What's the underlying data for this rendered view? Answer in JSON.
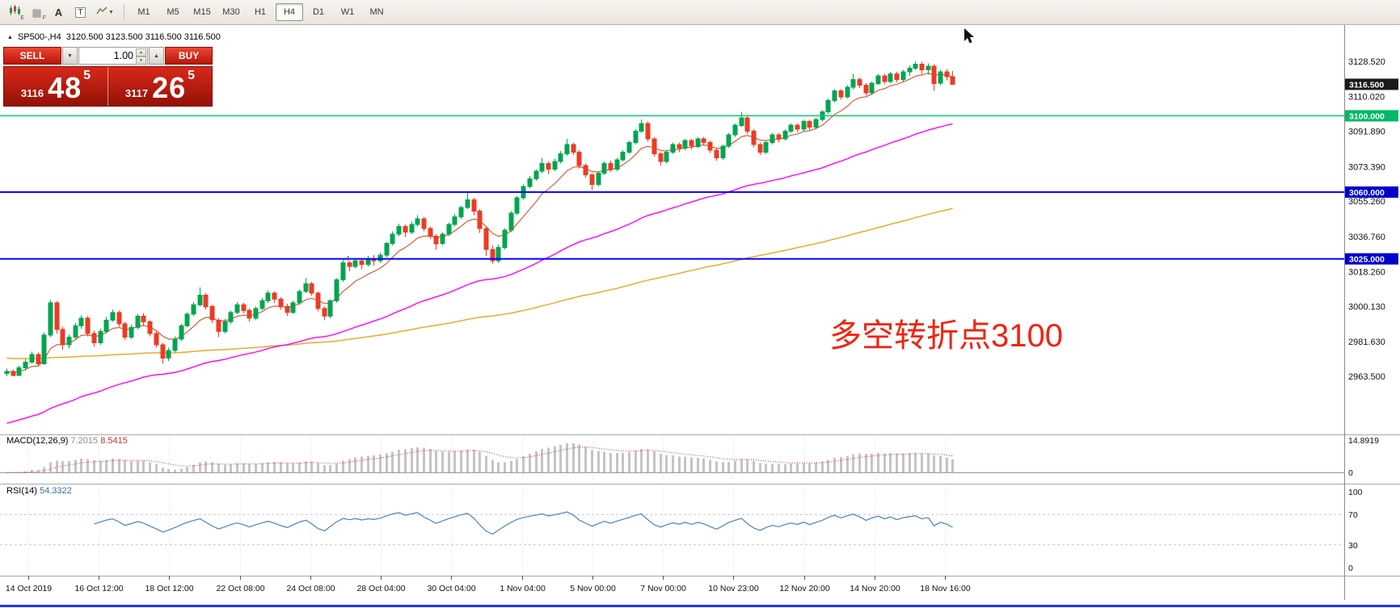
{
  "toolbar": {
    "tools": [
      {
        "name": "chart-expert-icon",
        "label": "E"
      },
      {
        "name": "grid-data-icon",
        "label": "F"
      },
      {
        "name": "font-tool",
        "label": "A"
      },
      {
        "name": "text-tool",
        "label": "T"
      },
      {
        "name": "zigzag-tool",
        "label": ""
      }
    ],
    "timeframes": [
      {
        "label": "M1",
        "active": false
      },
      {
        "label": "M5",
        "active": false
      },
      {
        "label": "M15",
        "active": false
      },
      {
        "label": "M30",
        "active": false
      },
      {
        "label": "H1",
        "active": false
      },
      {
        "label": "H4",
        "active": true
      },
      {
        "label": "D1",
        "active": false
      },
      {
        "label": "W1",
        "active": false
      },
      {
        "label": "MN",
        "active": false
      }
    ]
  },
  "symbol_header": {
    "symbol": "SP500-,H4",
    "ohlc": "3120.500 3123.500 3116.500 3116.500"
  },
  "trade_panel": {
    "sell_label": "SELL",
    "buy_label": "BUY",
    "volume": "1.00",
    "sell_price_prefix": "3116",
    "sell_price_main": "48",
    "sell_price_sup": "5",
    "buy_price_prefix": "3117",
    "buy_price_main": "26",
    "buy_price_sup": "5"
  },
  "annotation": {
    "text": "多空转折点3100",
    "color": "#f2230d"
  },
  "chart_data": {
    "type": "candlestick",
    "symbol": "SP500-",
    "timeframe": "H4",
    "title": "SP500-,H4",
    "ohlc_display": "3120.500 3123.500 3116.500 3116.500",
    "price_axis": [
      {
        "label": "3128.520",
        "price": 3128.52
      },
      {
        "label": "3110.020",
        "price": 3110.02
      },
      {
        "label": "3091.890",
        "price": 3091.89
      },
      {
        "label": "3073.390",
        "price": 3073.39
      },
      {
        "label": "3055.260",
        "price": 3055.26
      },
      {
        "label": "3036.760",
        "price": 3036.76
      },
      {
        "label": "3018.260",
        "price": 3018.26
      },
      {
        "label": "3000.130",
        "price": 3000.13
      },
      {
        "label": "2981.630",
        "price": 2981.63
      },
      {
        "label": "2963.500",
        "price": 2963.5
      }
    ],
    "price_tags": [
      {
        "label": "3116.500",
        "price": 3116.5,
        "bg": "#1a1a1a"
      },
      {
        "label": "3100.000",
        "price": 3100.0,
        "bg": "#00b865"
      },
      {
        "label": "3060.000",
        "price": 3060.0,
        "bg": "#0000cc"
      },
      {
        "label": "3025.000",
        "price": 3025.0,
        "bg": "#0000cc"
      }
    ],
    "hlines": [
      {
        "price": 3100.0,
        "color": "#00cf70",
        "width": 1.5
      },
      {
        "price": 3060.0,
        "color": "#0000ff",
        "width": 2
      },
      {
        "price": 3025.0,
        "color": "#0000ff",
        "width": 2
      }
    ],
    "time_labels": [
      "14 Oct 2019",
      "16 Oct 12:00",
      "18 Oct 12:00",
      "22 Oct 08:00",
      "24 Oct 08:00",
      "28 Oct 04:00",
      "30 Oct 04:00",
      "1 Nov 04:00",
      "5 Nov 00:00",
      "7 Nov 00:00",
      "10 Nov 23:00",
      "12 Nov 20:00",
      "14 Nov 20:00",
      "18 Nov 16:00"
    ],
    "ma": {
      "fast": {
        "color": "#d9512a"
      },
      "medium": {
        "color": "#ff00ff"
      },
      "slow": {
        "color": "#eea41e"
      }
    },
    "macd": {
      "label": "MACD(12,26,9)",
      "value_main": "7.2015",
      "value_signal": "8.5415",
      "fast": 12,
      "slow": 26,
      "signal": 9,
      "axis_top": "14.8919",
      "axis_zero": "0"
    },
    "rsi": {
      "label": "RSI(14)",
      "value": "54.3322",
      "period": 14,
      "levels": [
        70,
        30
      ],
      "axis": [
        "100",
        "70",
        "30",
        "0"
      ]
    },
    "candles": [
      [
        2965,
        2967.5,
        2963.5,
        2966
      ],
      [
        2966,
        2967,
        2963.5,
        2964
      ],
      [
        2964,
        2969,
        2963.8,
        2968
      ],
      [
        2968,
        2972.5,
        2966.5,
        2971
      ],
      [
        2971,
        2976.5,
        2970,
        2975
      ],
      [
        2975,
        2976,
        2968.5,
        2970
      ],
      [
        2970,
        2986.5,
        2969.5,
        2985
      ],
      [
        2985,
        3003.5,
        2984,
        3002
      ],
      [
        3002,
        3003,
        2986,
        2988
      ],
      [
        2988,
        2989.5,
        2977.5,
        2980
      ],
      [
        2980,
        2985.5,
        2978,
        2984
      ],
      [
        2984,
        2991.5,
        2983,
        2990
      ],
      [
        2990,
        2995.5,
        2988.5,
        2994
      ],
      [
        2994,
        2995,
        2984.5,
        2986
      ],
      [
        2986,
        2987.5,
        2979,
        2981
      ],
      [
        2981,
        2988.5,
        2980,
        2987
      ],
      [
        2987,
        2994.5,
        2986,
        2993
      ],
      [
        2993,
        2998.5,
        2992,
        2997
      ],
      [
        2997,
        2998,
        2989.5,
        2991
      ],
      [
        2991,
        2992,
        2982.5,
        2984
      ],
      [
        2984,
        2990.5,
        2983,
        2989
      ],
      [
        2989,
        2996,
        2988,
        2995
      ],
      [
        2995,
        2996.5,
        2990,
        2992
      ],
      [
        2992,
        2993,
        2984.5,
        2986
      ],
      [
        2986,
        2987,
        2978.5,
        2980
      ],
      [
        2980,
        2981,
        2970,
        2973
      ],
      [
        2973,
        2978.5,
        2971.5,
        2977
      ],
      [
        2977,
        2984.5,
        2976,
        2983
      ],
      [
        2983,
        2991,
        2982,
        2990
      ],
      [
        2990,
        2997,
        2989,
        2996
      ],
      [
        2996,
        3002.5,
        2995,
        3001
      ],
      [
        3001,
        3010,
        3000,
        3006
      ],
      [
        3006,
        3007,
        2998.5,
        3000
      ],
      [
        3000,
        3001,
        2991.5,
        2993
      ],
      [
        2993,
        2994,
        2984,
        2987
      ],
      [
        2987,
        2993.5,
        2986,
        2992
      ],
      [
        2992,
        2998,
        2991,
        2997
      ],
      [
        2997,
        3002.5,
        2996,
        3001
      ],
      [
        3001,
        3002,
        2996.5,
        2998
      ],
      [
        2998,
        2999,
        2992,
        2994
      ],
      [
        2994,
        3000,
        2993,
        2999
      ],
      [
        2999,
        3004.5,
        2998,
        3003
      ],
      [
        3003,
        3008.5,
        3002,
        3007
      ],
      [
        3007,
        3008,
        3002,
        3004
      ],
      [
        3004,
        3005,
        2998.5,
        3000
      ],
      [
        3000,
        3001.5,
        2995,
        2997
      ],
      [
        2997,
        3003,
        2996,
        3002
      ],
      [
        3002,
        3009,
        3001,
        3008
      ],
      [
        3008,
        3015,
        3007,
        3012
      ],
      [
        3012,
        3013,
        3005.5,
        3007
      ],
      [
        3007,
        3008,
        2997.5,
        2999
      ],
      [
        2999,
        3000,
        2993,
        2995
      ],
      [
        2995,
        3004,
        2994,
        3003
      ],
      [
        3003,
        3015,
        3002,
        3014
      ],
      [
        3014,
        3024.5,
        3013,
        3023
      ],
      [
        3023,
        3024,
        3018.5,
        3021
      ],
      [
        3021,
        3025.5,
        3020,
        3024
      ],
      [
        3024,
        3025,
        3019.5,
        3022
      ],
      [
        3022,
        3026.5,
        3021,
        3025
      ],
      [
        3025,
        3027,
        3021.5,
        3024
      ],
      [
        3024,
        3028.5,
        3023,
        3027
      ],
      [
        3027,
        3034,
        3026,
        3033
      ],
      [
        3033,
        3039.5,
        3032,
        3038
      ],
      [
        3038,
        3043.5,
        3037,
        3042
      ],
      [
        3042,
        3043,
        3036.5,
        3039
      ],
      [
        3039,
        3044.5,
        3038,
        3043
      ],
      [
        3043,
        3048,
        3042,
        3046
      ],
      [
        3046,
        3047,
        3039.5,
        3041
      ],
      [
        3041,
        3042,
        3035.5,
        3037
      ],
      [
        3037,
        3038,
        3030,
        3033
      ],
      [
        3033,
        3039,
        3032,
        3038
      ],
      [
        3038,
        3044,
        3037,
        3043
      ],
      [
        3043,
        3048.5,
        3042,
        3047
      ],
      [
        3047,
        3053,
        3046,
        3052
      ],
      [
        3052,
        3060,
        3051,
        3056
      ],
      [
        3056,
        3057,
        3048,
        3050
      ],
      [
        3050,
        3051,
        3038.5,
        3041
      ],
      [
        3041,
        3042,
        3026.5,
        3030
      ],
      [
        3030,
        3032,
        3022.5,
        3024
      ],
      [
        3024,
        3032.5,
        3023,
        3031
      ],
      [
        3031,
        3041,
        3030,
        3040
      ],
      [
        3040,
        3050,
        3039,
        3049
      ],
      [
        3049,
        3058,
        3048,
        3057
      ],
      [
        3057,
        3064,
        3056,
        3063
      ],
      [
        3063,
        3068.5,
        3062,
        3067
      ],
      [
        3067,
        3072,
        3066,
        3071
      ],
      [
        3071,
        3078,
        3070,
        3075
      ],
      [
        3075,
        3076,
        3069.5,
        3072
      ],
      [
        3072,
        3077.5,
        3071,
        3076
      ],
      [
        3076,
        3081.5,
        3075,
        3080
      ],
      [
        3080,
        3088,
        3079,
        3085
      ],
      [
        3085,
        3086,
        3079.5,
        3081
      ],
      [
        3081,
        3082,
        3072.5,
        3074
      ],
      [
        3074,
        3075,
        3067.5,
        3069
      ],
      [
        3069,
        3070,
        3061,
        3064
      ],
      [
        3064,
        3071,
        3063,
        3070
      ],
      [
        3070,
        3076,
        3069,
        3075
      ],
      [
        3075,
        3076.5,
        3070.5,
        3072
      ],
      [
        3072,
        3078,
        3071,
        3077
      ],
      [
        3077,
        3082,
        3076,
        3081
      ],
      [
        3081,
        3087,
        3080,
        3086
      ],
      [
        3086,
        3093,
        3085,
        3092
      ],
      [
        3092,
        3098,
        3091,
        3096
      ],
      [
        3096,
        3097,
        3086.5,
        3088
      ],
      [
        3088,
        3089,
        3078.5,
        3080
      ],
      [
        3080,
        3081,
        3074,
        3076
      ],
      [
        3076,
        3082,
        3075,
        3081
      ],
      [
        3081,
        3086,
        3080,
        3085
      ],
      [
        3085,
        3086,
        3081,
        3083
      ],
      [
        3083,
        3088,
        3082,
        3087
      ],
      [
        3087,
        3088,
        3082.5,
        3084
      ],
      [
        3084,
        3089,
        3083,
        3088
      ],
      [
        3088,
        3089,
        3084.5,
        3086
      ],
      [
        3086,
        3087,
        3080.5,
        3082
      ],
      [
        3082,
        3083,
        3076.5,
        3078
      ],
      [
        3078,
        3085,
        3077,
        3084
      ],
      [
        3084,
        3091,
        3083,
        3090
      ],
      [
        3090,
        3096,
        3089,
        3095
      ],
      [
        3095,
        3102,
        3094,
        3099
      ],
      [
        3099,
        3100,
        3090.5,
        3092
      ],
      [
        3092,
        3093,
        3083.5,
        3085
      ],
      [
        3085,
        3086,
        3079.5,
        3081
      ],
      [
        3081,
        3087,
        3080,
        3086
      ],
      [
        3086,
        3091,
        3085,
        3090
      ],
      [
        3090,
        3091,
        3086,
        3088
      ],
      [
        3088,
        3093,
        3087,
        3092
      ],
      [
        3092,
        3096,
        3091,
        3095
      ],
      [
        3095,
        3096,
        3091.5,
        3093
      ],
      [
        3093,
        3098,
        3092,
        3097
      ],
      [
        3097,
        3098,
        3092.5,
        3094
      ],
      [
        3094,
        3099,
        3093,
        3098
      ],
      [
        3098,
        3103,
        3097,
        3102
      ],
      [
        3102,
        3109,
        3101,
        3108
      ],
      [
        3108,
        3114,
        3107,
        3113
      ],
      [
        3113,
        3114,
        3108.5,
        3110
      ],
      [
        3110,
        3116,
        3109,
        3115
      ],
      [
        3115,
        3122,
        3114,
        3119
      ],
      [
        3119,
        3120,
        3114.5,
        3116
      ],
      [
        3116,
        3117,
        3110.5,
        3112
      ],
      [
        3112,
        3118,
        3111,
        3117
      ],
      [
        3117,
        3122,
        3116,
        3121
      ],
      [
        3121,
        3122,
        3116.5,
        3118
      ],
      [
        3118,
        3123,
        3117,
        3122
      ],
      [
        3122,
        3123,
        3117.5,
        3119
      ],
      [
        3119,
        3124,
        3118,
        3123
      ],
      [
        3123,
        3126.5,
        3121,
        3125
      ],
      [
        3125,
        3128.5,
        3124,
        3127
      ],
      [
        3127,
        3128.3,
        3122,
        3124
      ],
      [
        3124,
        3127.5,
        3121.5,
        3126
      ],
      [
        3126,
        3127,
        3113,
        3117
      ],
      [
        3117,
        3124,
        3116,
        3123
      ],
      [
        3123,
        3124.5,
        3118.5,
        3120.5
      ],
      [
        3120.5,
        3123.5,
        3116.5,
        3116.5
      ]
    ]
  }
}
